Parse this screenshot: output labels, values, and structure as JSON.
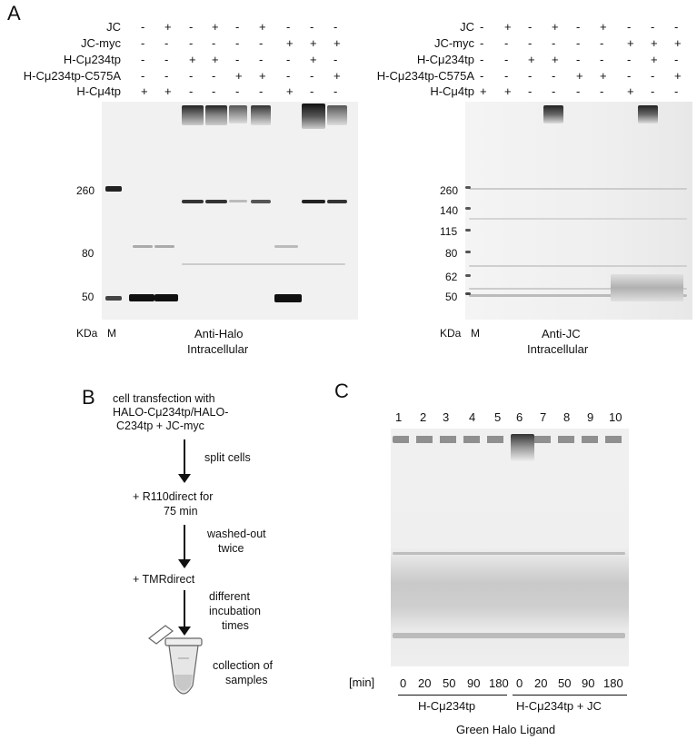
{
  "panelA": {
    "label": "A",
    "rows": [
      {
        "name": "JC",
        "left": [
          "-",
          "+",
          "-",
          "+",
          "-",
          "+",
          "-",
          "-",
          "-"
        ],
        "right": [
          "-",
          "+",
          "-",
          "+",
          "-",
          "+",
          "-",
          "-",
          "-"
        ]
      },
      {
        "name": "JC-myc",
        "left": [
          "-",
          "-",
          "-",
          "-",
          "-",
          "-",
          "+",
          "+",
          "+"
        ],
        "right": [
          "-",
          "-",
          "-",
          "-",
          "-",
          "-",
          "+",
          "+",
          "+"
        ]
      },
      {
        "name": "H-Cμ234tp",
        "left": [
          "-",
          "-",
          "+",
          "+",
          "-",
          "-",
          "-",
          "+",
          "-"
        ],
        "right": [
          "-",
          "-",
          "+",
          "+",
          "-",
          "-",
          "-",
          "+",
          "-"
        ]
      },
      {
        "name": "H-Cμ234tp-C575A",
        "left": [
          "-",
          "-",
          "-",
          "-",
          "+",
          "+",
          "-",
          "-",
          "+"
        ],
        "right": [
          "-",
          "-",
          "-",
          "-",
          "+",
          "+",
          "-",
          "-",
          "+"
        ]
      },
      {
        "name": "H-Cμ4tp",
        "left": [
          "+",
          "+",
          "-",
          "-",
          "-",
          "-",
          "+",
          "-",
          "-"
        ],
        "right": [
          "+",
          "+",
          "-",
          "-",
          "-",
          "-",
          "+",
          "-",
          "-"
        ]
      }
    ],
    "left_blot": {
      "markers": [
        "260",
        "80",
        "50"
      ],
      "kda": "KDa",
      "m": "M",
      "caption1": "Anti-Halo",
      "caption2": "Intracellular"
    },
    "right_blot": {
      "markers": [
        "260",
        "140",
        "115",
        "80",
        "62",
        "50"
      ],
      "kda": "KDa",
      "m": "M",
      "caption1": "Anti-JC",
      "caption2": "Intracellular"
    }
  },
  "panelB": {
    "label": "B",
    "steps": [
      "cell transfection with",
      "HALO-Cμ234tp/HALO-",
      "C234tp + JC-myc",
      "split cells",
      "+ R110direct for",
      "75 min",
      "washed-out",
      "twice",
      "+ TMRdirect",
      "different",
      "incubation",
      "times",
      "collection of",
      "samples"
    ]
  },
  "panelC": {
    "label": "C",
    "lanes": [
      "1",
      "2",
      "3",
      "4",
      "5",
      "6",
      "7",
      "8",
      "9",
      "10"
    ],
    "min_label": "[min]",
    "times": [
      "0",
      "20",
      "50",
      "90",
      "180",
      "0",
      "20",
      "50",
      "90",
      "180"
    ],
    "group1": "H-Cμ234tp",
    "group2": "H-Cμ234tp + JC",
    "caption": "Green Halo Ligand"
  }
}
